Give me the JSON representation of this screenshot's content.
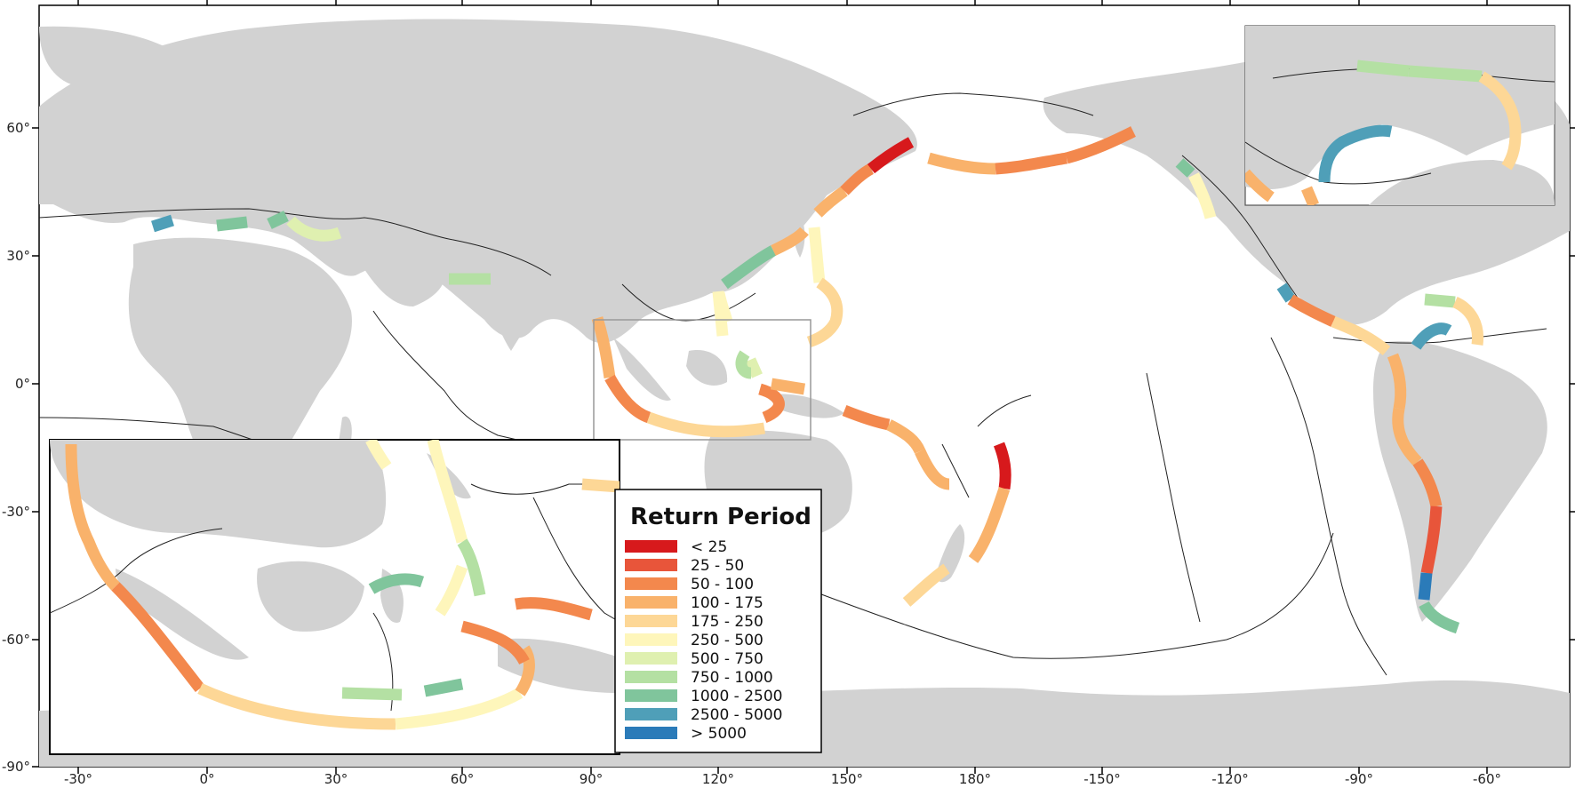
{
  "map": {
    "longitude_ticks": [
      "-30°",
      "0°",
      "30°",
      "60°",
      "90°",
      "120°",
      "150°",
      "180°",
      "-150°",
      "-120°",
      "-90°",
      "-60°"
    ],
    "latitude_ticks": [
      "60°",
      "30°",
      "0°",
      "-30°",
      "-60°",
      "-90°"
    ]
  },
  "legend": {
    "title": "Return Period",
    "classes": [
      {
        "label": "< 25",
        "color": "#d7191c"
      },
      {
        "label": "25 - 50",
        "color": "#e8553a"
      },
      {
        "label": "50 - 100",
        "color": "#f3884d"
      },
      {
        "label": "100 - 175",
        "color": "#f9b26b"
      },
      {
        "label": "175 - 250",
        "color": "#fdd796"
      },
      {
        "label": "250 - 500",
        "color": "#fef6bb"
      },
      {
        "label": "500 - 750",
        "color": "#dff0b0"
      },
      {
        "label": "750 - 1000",
        "color": "#b4e0a3"
      },
      {
        "label": "1000 - 2500",
        "color": "#80c59c"
      },
      {
        "label": "2500 - 5000",
        "color": "#4f9fb8"
      },
      {
        "label": "> 5000",
        "color": "#2b7bb9"
      }
    ]
  },
  "colors": {
    "land": "#d2d2d2",
    "ocean": "#ffffff",
    "plate_boundary": "#222222"
  }
}
